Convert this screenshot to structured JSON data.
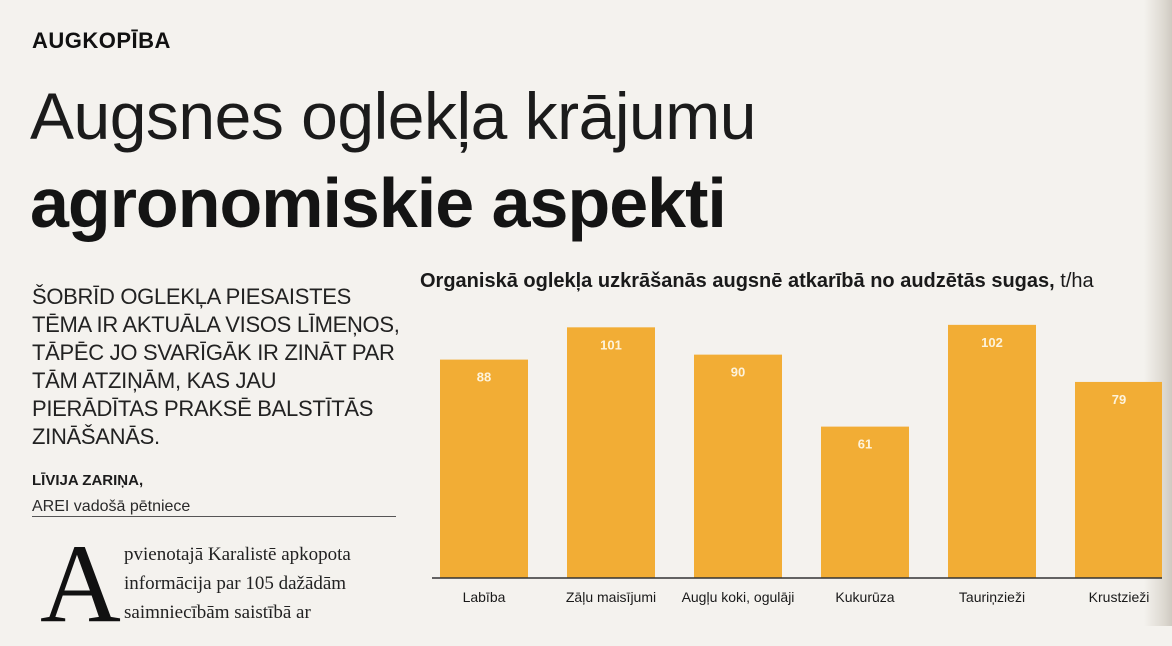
{
  "section_label": "AUGKOPĪBA",
  "headline": {
    "line1": "Augsnes oglekļa krājumu",
    "line2": "agronomiskie aspekti"
  },
  "lead": "ŠOBRĪD OGLEKĻA PIESAISTES TĒMA IR AKTUĀLA VISOS LĪMEŅOS, TĀPĒC JO SVARĪGĀK IR ZINĀT PAR TĀM ATZIŅĀM, KAS JAU PIERĀDĪTAS PRAKSĒ BALSTĪTĀS ZINĀŠANĀS.",
  "author": {
    "name": "LĪVIJA ZARIŅA,",
    "role": "AREI vadošā pētniece"
  },
  "body": {
    "dropcap": "A",
    "lines": [
      "pvienotajā Karalistē apkopota",
      "informācija par 105 dažādām",
      "saimniecībām saistībā ar"
    ]
  },
  "chart_data": {
    "type": "bar",
    "title": "Organiskā oglekļa uzkrāšanās augsnē atkarībā no audzētās sugas,",
    "unit": "t/ha",
    "categories": [
      "Labība",
      "Zāļu maisījumi",
      "Augļu koki, ogulāji",
      "Kukurūza",
      "Tauriņzieži",
      "Krustzieži"
    ],
    "values": [
      88,
      101,
      90,
      61,
      102,
      79
    ],
    "ylim": [
      0,
      110
    ],
    "grid": false,
    "bar_color": "#f2ad35",
    "label_color": "#fdf3dc"
  }
}
